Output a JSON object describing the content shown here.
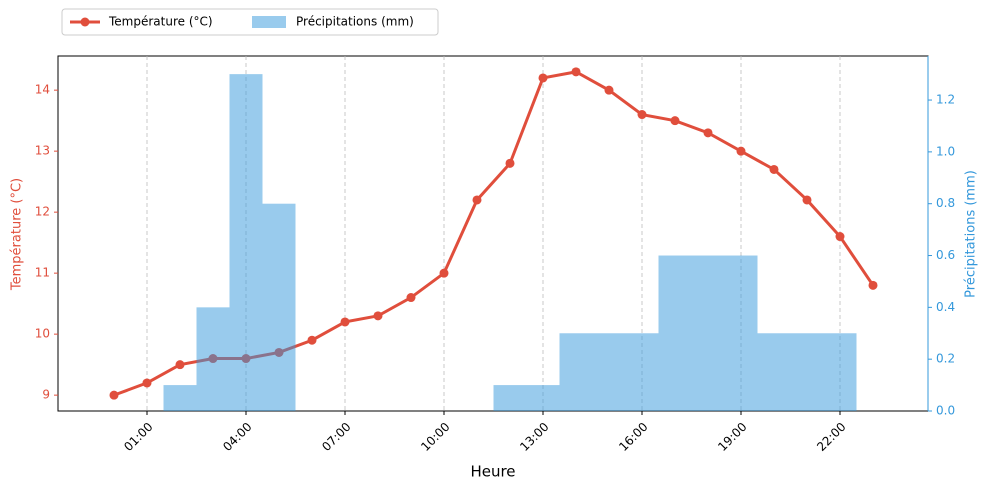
{
  "chart_data": {
    "type": "combo",
    "x_label": "Heure",
    "y_label": "Température (°C)",
    "y2_label": "Précipitations (mm)",
    "categories": [
      null,
      "01:00",
      null,
      null,
      "04:00",
      null,
      null,
      "07:00",
      null,
      null,
      "10:00",
      null,
      null,
      "13:00",
      null,
      null,
      "16:00",
      null,
      null,
      "19:00",
      null,
      null,
      "22:00",
      null
    ],
    "series": [
      {
        "name": "Température (°C)",
        "type": "line",
        "color": "#e04e3c",
        "values": [
          9.0,
          9.2,
          9.5,
          9.6,
          9.6,
          9.7,
          9.9,
          10.2,
          10.3,
          10.6,
          11.0,
          12.2,
          12.8,
          14.2,
          14.3,
          14.0,
          13.6,
          13.5,
          13.3,
          13.0,
          12.7,
          12.2,
          11.6,
          10.8
        ]
      },
      {
        "name": "Précipitations (mm)",
        "type": "bar",
        "axis": "y2",
        "color": "#3498db",
        "values": [
          0,
          0,
          0.1,
          0.4,
          1.3,
          0.8,
          0,
          0,
          0,
          0,
          0,
          0,
          0.1,
          0.1,
          0.3,
          0.3,
          0.3,
          0.6,
          0.6,
          0.6,
          0.3,
          0.3,
          0.3,
          0
        ]
      }
    ],
    "ylim": [
      8.74,
      14.56
    ],
    "yticks": [
      9,
      10,
      11,
      12,
      13,
      14
    ],
    "y2lim": [
      0,
      1.37
    ],
    "y2ticks": [
      {
        "value": 0,
        "label": "0.0"
      },
      0.2,
      0.4,
      0.6,
      0.8,
      {
        "value": 1,
        "label": "1.0"
      },
      1.2
    ],
    "x_grid": true,
    "legend": "upper left outside"
  }
}
